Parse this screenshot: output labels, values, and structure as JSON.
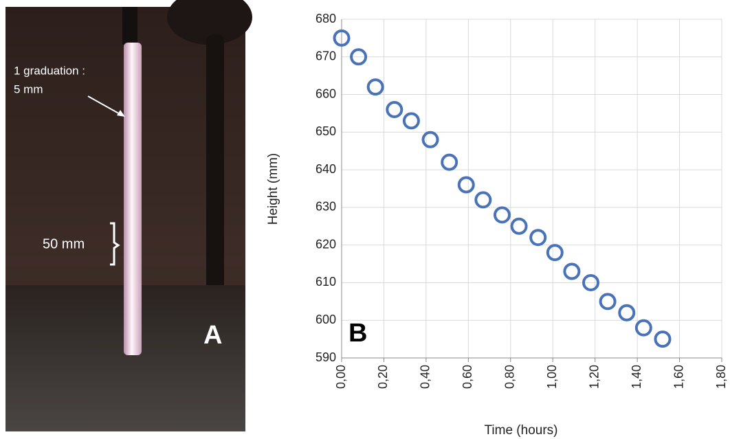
{
  "panel_a": {
    "annotation_lines": [
      "1 graduation :",
      "5 mm"
    ],
    "scale_label": "50 mm",
    "label": "A"
  },
  "chart_data": {
    "type": "scatter",
    "panel_label": "B",
    "x_label": "Time (hours)",
    "y_label": "Height (mm)",
    "x": [
      0,
      0.08,
      0.16,
      0.25,
      0.33,
      0.42,
      0.51,
      0.59,
      0.67,
      0.76,
      0.84,
      0.93,
      1.01,
      1.09,
      1.18,
      1.26,
      1.35,
      1.43,
      1.52
    ],
    "values": [
      675,
      670,
      662,
      656,
      653,
      648,
      642,
      636,
      632,
      628,
      625,
      622,
      618,
      613,
      610,
      605,
      602,
      598,
      595
    ],
    "color": "#4a72b8",
    "xlim": [
      0,
      1.8
    ],
    "ylim": [
      590,
      680
    ],
    "xticks": [
      {
        "value": 0,
        "label": "0,00"
      },
      {
        "value": 0.2,
        "label": "0,20"
      },
      {
        "value": 0.4,
        "label": "0,40"
      },
      {
        "value": 0.6,
        "label": "0,60"
      },
      {
        "value": 0.8,
        "label": "0,80"
      },
      {
        "value": 1,
        "label": "1,00"
      },
      {
        "value": 1.2,
        "label": "1,20"
      },
      {
        "value": 1.4,
        "label": "1,40"
      },
      {
        "value": 1.6,
        "label": "1,60"
      },
      {
        "value": 1.8,
        "label": "1,80"
      }
    ],
    "yticks": [
      590,
      600,
      610,
      620,
      630,
      640,
      650,
      660,
      670,
      680
    ],
    "grid": true
  }
}
